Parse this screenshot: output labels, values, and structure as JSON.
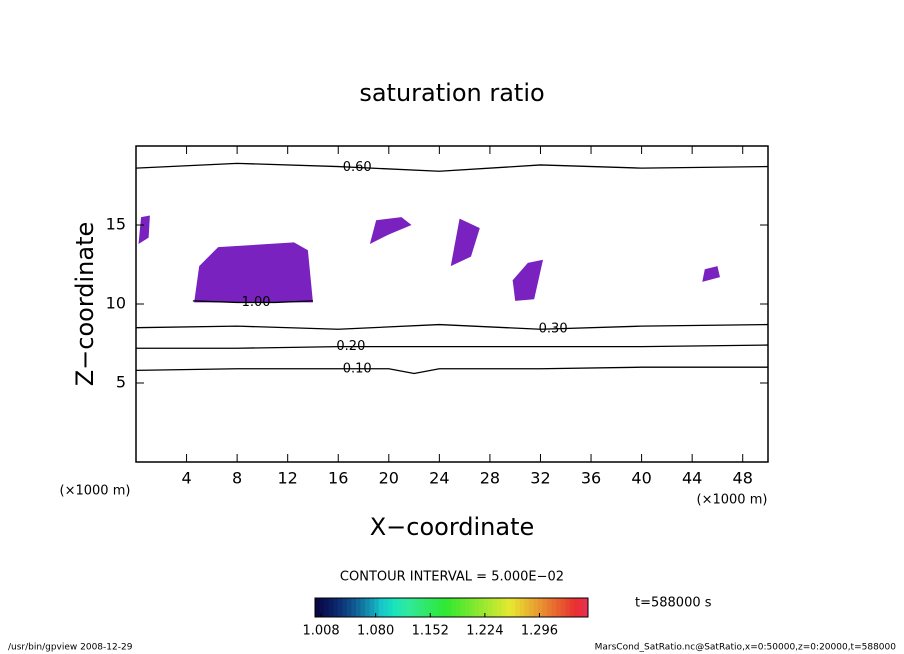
{
  "chart_data": {
    "type": "contour",
    "title": "saturation ratio",
    "x_label": "X−coordinate",
    "y_label": "Z−coordinate",
    "x_unit": "(×1000 m)",
    "y_unit": "(×1000 m)",
    "xlim": [
      0,
      50
    ],
    "ylim": [
      0,
      20
    ],
    "xticks": [
      4,
      8,
      12,
      16,
      20,
      24,
      28,
      32,
      36,
      40,
      44,
      48
    ],
    "yticks": [
      5,
      10,
      15
    ],
    "contour_interval_text": "CONTOUR INTERVAL = 5.000E−02",
    "contours": [
      {
        "level": 0.1,
        "label": "0.10",
        "x": [
          0,
          8,
          16,
          20,
          22,
          24,
          32,
          40,
          50
        ],
        "y": [
          5.8,
          5.9,
          5.9,
          5.9,
          5.6,
          5.9,
          5.9,
          6.0,
          6.0
        ],
        "label_x": 17.5
      },
      {
        "level": 0.2,
        "label": "0.20",
        "x": [
          0,
          8,
          16,
          24,
          32,
          40,
          50
        ],
        "y": [
          7.2,
          7.2,
          7.3,
          7.3,
          7.3,
          7.3,
          7.4
        ],
        "label_x": 17
      },
      {
        "level": 0.3,
        "label": "0.30",
        "x": [
          0,
          8,
          16,
          24,
          32,
          40,
          50
        ],
        "y": [
          8.5,
          8.6,
          8.4,
          8.7,
          8.4,
          8.6,
          8.7
        ],
        "label_x": 33
      },
      {
        "level": 0.6,
        "label": "0.60",
        "x": [
          0,
          8,
          16,
          24,
          32,
          40,
          50
        ],
        "y": [
          18.6,
          18.9,
          18.7,
          18.4,
          18.8,
          18.6,
          18.7
        ],
        "label_x": 17.5
      },
      {
        "level": 1.0,
        "label": "1.00",
        "x": [
          4.5,
          8,
          11,
          14
        ],
        "y": [
          10.2,
          10.1,
          10.1,
          10.2
        ],
        "label_x": 9.5
      }
    ],
    "shade_color": "#7a22c0",
    "shaded_regions": [
      {
        "x": [
          4.6,
          5,
          6.5,
          12.5,
          13.6,
          14,
          4.5
        ],
        "y": [
          10.1,
          12.4,
          13.6,
          13.9,
          13.4,
          10.1,
          10.1
        ]
      },
      {
        "x": [
          0.2,
          1,
          1.1,
          0.4
        ],
        "y": [
          13.8,
          14.2,
          15.6,
          15.5
        ]
      },
      {
        "x": [
          18.5,
          20,
          21.8,
          21,
          19
        ],
        "y": [
          13.8,
          14.4,
          15.0,
          15.5,
          15.3
        ]
      },
      {
        "x": [
          24.9,
          26.5,
          27.2,
          25.6
        ],
        "y": [
          12.4,
          13.0,
          14.8,
          15.4
        ]
      },
      {
        "x": [
          30,
          31.5,
          32.2,
          31,
          29.8
        ],
        "y": [
          10.2,
          10.3,
          12.8,
          12.6,
          11.5
        ]
      },
      {
        "x": [
          44.8,
          46.2,
          46,
          45
        ],
        "y": [
          11.4,
          11.7,
          12.4,
          12.2
        ]
      }
    ],
    "colorbar": {
      "lim": [
        1.0,
        1.36
      ],
      "ticks": [
        1.008,
        {
          "value": 1.08,
          "label": "1.080"
        },
        1.152,
        1.224,
        1.296
      ]
    },
    "time_label": "t=588000 s",
    "footer_left": "/usr/bin/gpview   2008-12-29",
    "footer_right": "MarsCond_SatRatio.nc@SatRatio,x=0:50000,z=0:20000,t=588000"
  }
}
